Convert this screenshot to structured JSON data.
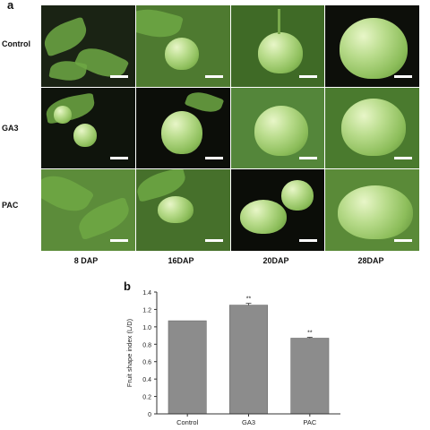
{
  "panel_a": {
    "letter": "a",
    "row_labels": [
      "Control",
      "GA3",
      "PAC"
    ],
    "column_labels": [
      "8 DAP",
      "16DAP",
      "20DAP",
      "28DAP"
    ]
  },
  "panel_b": {
    "letter": "b"
  },
  "chart_data": {
    "type": "bar",
    "title": "",
    "xlabel": "",
    "ylabel": "Fruit shape index (L/D)",
    "categories": [
      "Control",
      "GA3",
      "PAC"
    ],
    "values": [
      1.07,
      1.25,
      0.87
    ],
    "errors": [
      0.0,
      0.02,
      0.01
    ],
    "annotations": [
      "",
      "**",
      "**"
    ],
    "ylim": [
      0,
      1.4
    ],
    "yticks": [
      "0",
      "0.2",
      "0.4",
      "0.6",
      "0.8",
      "1.0",
      "1.2",
      "1.4"
    ],
    "bar_color": "#8c8c8c",
    "grid": false,
    "legend": "none"
  }
}
